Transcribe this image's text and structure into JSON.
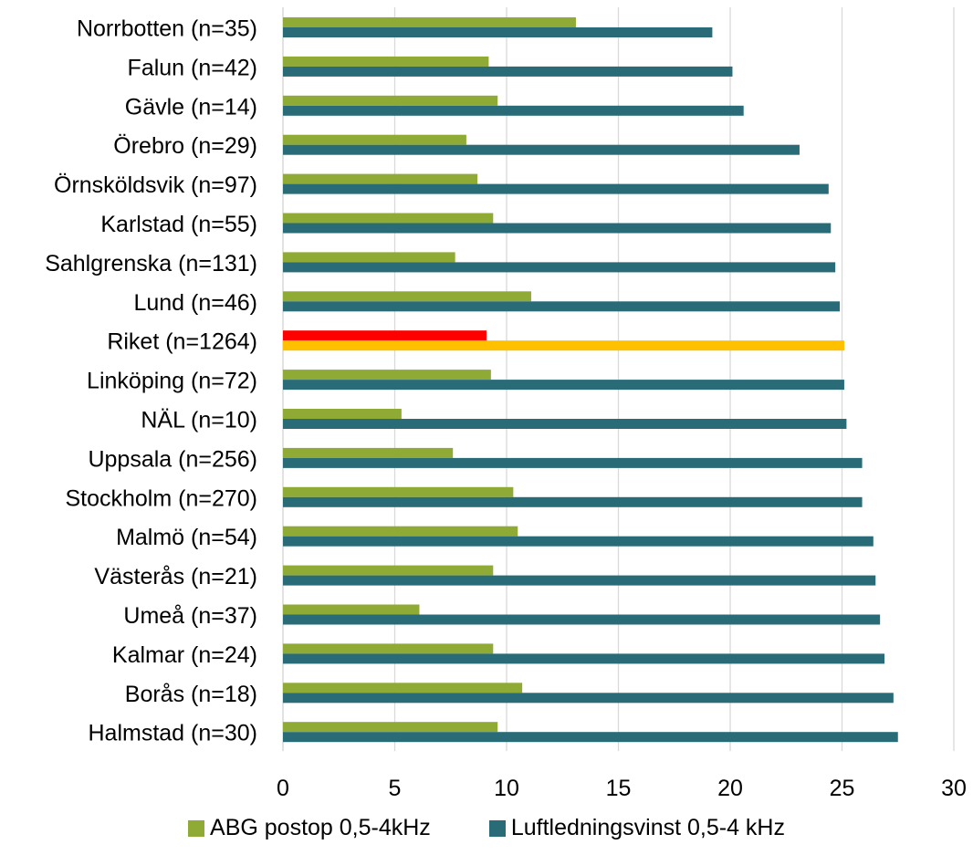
{
  "chart_data": {
    "type": "bar",
    "orientation": "horizontal",
    "categories": [
      "Norrbotten (n=35)",
      "Falun (n=42)",
      "Gävle (n=14)",
      "Örebro (n=29)",
      "Örnsköldsvik (n=97)",
      "Karlstad (n=55)",
      "Sahlgrenska (n=131)",
      "Lund (n=46)",
      "Riket (n=1264)",
      "Linköping (n=72)",
      "NÄL (n=10)",
      "Uppsala (n=256)",
      "Stockholm (n=270)",
      "Malmö (n=54)",
      "Västerås (n=21)",
      "Umeå (n=37)",
      "Kalmar (n=24)",
      "Borås (n=18)",
      "Halmstad (n=30)"
    ],
    "series": [
      {
        "name": "ABG postop 0,5-4kHz",
        "color": "#8faa35",
        "values": [
          13.1,
          9.2,
          9.6,
          8.2,
          8.7,
          9.4,
          7.7,
          11.1,
          9.1,
          9.3,
          5.3,
          7.6,
          10.3,
          10.5,
          9.4,
          6.1,
          9.4,
          10.7,
          9.6
        ]
      },
      {
        "name": "Luftledningsvinst 0,5-4 kHz",
        "color": "#296b77",
        "values": [
          19.2,
          20.1,
          20.6,
          23.1,
          24.4,
          24.5,
          24.7,
          24.9,
          25.1,
          25.1,
          25.2,
          25.9,
          25.9,
          26.4,
          26.5,
          26.7,
          26.9,
          27.3,
          27.5
        ]
      }
    ],
    "highlight": {
      "category": "Riket (n=1264)",
      "colors": [
        "#ff0000",
        "#ffc000"
      ]
    },
    "xlim": [
      0,
      30
    ],
    "xticks": [
      0,
      5,
      10,
      15,
      20,
      25,
      30
    ],
    "grid": true,
    "legend_position": "bottom",
    "title": "",
    "xlabel": "",
    "ylabel": ""
  }
}
